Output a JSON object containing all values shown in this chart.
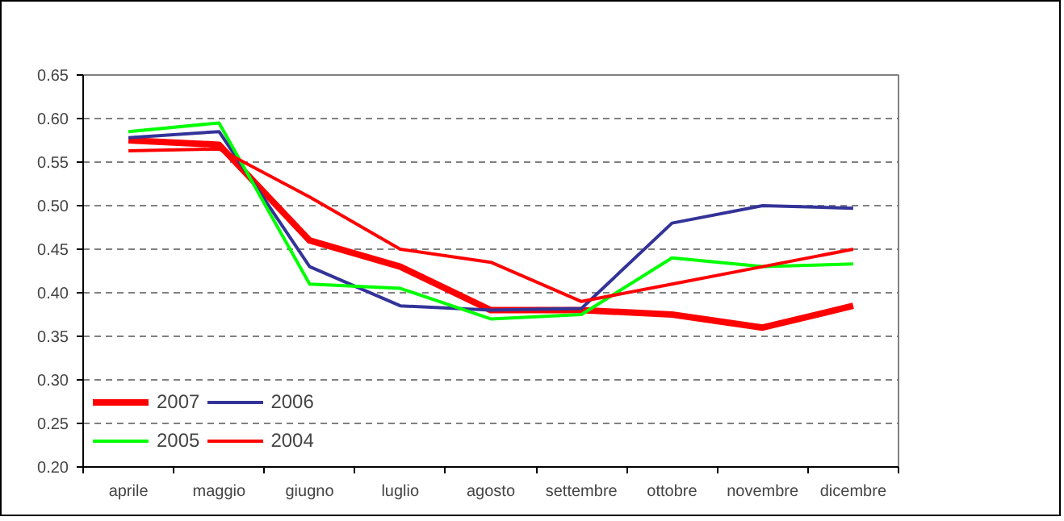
{
  "chart_data": {
    "type": "line",
    "categories": [
      "aprile",
      "maggio",
      "giugno",
      "luglio",
      "agosto",
      "settembre",
      "ottobre",
      "novembre",
      "dicembre"
    ],
    "series": [
      {
        "name": "2007",
        "color": "#ff0000",
        "values": [
          0.575,
          0.57,
          0.46,
          0.43,
          0.38,
          0.38,
          0.375,
          0.36,
          0.385
        ]
      },
      {
        "name": "2006",
        "color": "#333399",
        "values": [
          0.578,
          0.585,
          0.43,
          0.385,
          0.38,
          0.382,
          0.48,
          0.5,
          0.497
        ]
      },
      {
        "name": "2005",
        "color": "#00ff00",
        "values": [
          0.585,
          0.595,
          0.41,
          0.405,
          0.37,
          0.375,
          0.44,
          0.43,
          0.433
        ]
      },
      {
        "name": "2004",
        "color": "#ff0000",
        "values": [
          0.563,
          0.565,
          0.51,
          0.45,
          0.435,
          0.39,
          0.41,
          0.43,
          0.45
        ]
      }
    ],
    "ylim": [
      0.2,
      0.65
    ],
    "yticks": [
      {
        "value": 0.2,
        "label": "0.20"
      },
      {
        "value": 0.25,
        "label": "0.25"
      },
      {
        "value": 0.3,
        "label": "0.30"
      },
      {
        "value": 0.35,
        "label": "0.35"
      },
      {
        "value": 0.4,
        "label": "0.40"
      },
      {
        "value": 0.45,
        "label": "0.45"
      },
      {
        "value": 0.5,
        "label": "0.50"
      },
      {
        "value": 0.55,
        "label": "0.55"
      },
      {
        "value": 0.6,
        "label": "0.60"
      },
      {
        "value": 0.65,
        "label": "0.65"
      }
    ],
    "grid": "y",
    "legend": "bottom left",
    "marker": "none",
    "line_style": "solid"
  }
}
